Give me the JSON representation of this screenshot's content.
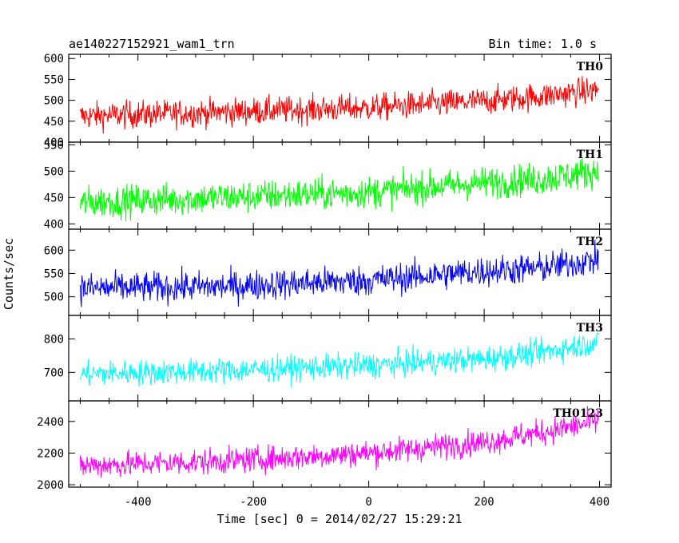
{
  "chart_data": {
    "type": "line",
    "title": "ae140227152921_wam1_trn",
    "bin_time_label": "Bin time: 1.0 s",
    "xlabel": "Time [sec] 0 = 2014/02/27 15:29:21",
    "ylabel": "Counts/sec",
    "xlim": [
      -520,
      420
    ],
    "xticks": [
      -400,
      -200,
      0,
      200,
      400
    ],
    "x_range": [
      -500,
      398
    ],
    "grid": false,
    "panels": [
      {
        "name": "TH0",
        "color": "#ff0000",
        "ylim": [
          400,
          610
        ],
        "yticks": [
          400,
          450,
          500,
          550,
          600
        ],
        "trend": {
          "x": [
            -500,
            -250,
            0,
            200,
            300,
            398
          ],
          "y": [
            462,
            472,
            482,
            498,
            510,
            525
          ]
        },
        "scatter": 30
      },
      {
        "name": "TH1",
        "color": "#00ff00",
        "ylim": [
          390,
          555
        ],
        "yticks": [
          400,
          450,
          500,
          550
        ],
        "trend": {
          "x": [
            -500,
            -250,
            0,
            200,
            300,
            398
          ],
          "y": [
            440,
            450,
            460,
            478,
            485,
            500
          ]
        },
        "scatter": 28
      },
      {
        "name": "TH2",
        "color": "#0000ff",
        "ylim": [
          460,
          645
        ],
        "yticks": [
          500,
          550,
          600
        ],
        "trend": {
          "x": [
            -500,
            -250,
            0,
            200,
            300,
            398
          ],
          "y": [
            518,
            522,
            535,
            555,
            562,
            580
          ]
        },
        "scatter": 30
      },
      {
        "name": "TH3",
        "color": "#00ffff",
        "ylim": [
          615,
          870
        ],
        "yticks": [
          700,
          800
        ],
        "trend": {
          "x": [
            -500,
            -250,
            0,
            200,
            300,
            398
          ],
          "y": [
            695,
            705,
            720,
            740,
            760,
            790
          ]
        },
        "scatter": 35
      },
      {
        "name": "TH0123",
        "color": "#ff00ff",
        "ylim": [
          1985,
          2530
        ],
        "yticks": [
          2000,
          2200,
          2400
        ],
        "trend": {
          "x": [
            -500,
            -250,
            0,
            200,
            300,
            398
          ],
          "y": [
            2120,
            2150,
            2200,
            2270,
            2330,
            2400
          ]
        },
        "scatter": 75
      }
    ]
  }
}
